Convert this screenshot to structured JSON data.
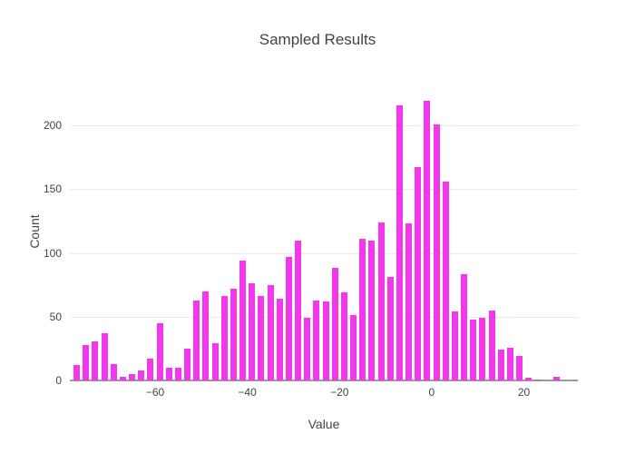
{
  "figure": {
    "title": "Sampled Results",
    "colors": {
      "bar": "#f337ec",
      "text": "#444444",
      "grid": "#ebebeb",
      "axis_line": "#9a9a9a",
      "background": "#ffffff"
    }
  },
  "chart_data": {
    "type": "bar",
    "subtype": "histogram",
    "title": "Sampled Results",
    "xlabel": "Value",
    "ylabel": "Count",
    "bin_width": 2,
    "bar_color": "#f337ec",
    "categories": [
      -77,
      -75,
      -73,
      -71,
      -69,
      -67,
      -65,
      -63,
      -61,
      -59,
      -57,
      -55,
      -53,
      -51,
      -49,
      -47,
      -45,
      -43,
      -41,
      -39,
      -37,
      -35,
      -33,
      -31,
      -29,
      -27,
      -25,
      -23,
      -21,
      -19,
      -17,
      -15,
      -13,
      -11,
      -9,
      -7,
      -5,
      -3,
      -1,
      1,
      3,
      5,
      7,
      9,
      11,
      13,
      15,
      17,
      19,
      21,
      23,
      25,
      27
    ],
    "values": [
      12,
      28,
      31,
      37,
      13,
      3,
      5,
      8,
      17,
      45,
      10,
      10,
      25,
      63,
      70,
      29,
      66,
      72,
      94,
      76,
      66,
      75,
      64,
      97,
      110,
      49,
      63,
      62,
      88,
      69,
      51,
      111,
      110,
      124,
      81,
      216,
      123,
      167,
      219,
      201,
      156,
      54,
      83,
      48,
      49,
      55,
      24,
      26,
      19,
      2,
      1,
      0,
      3
    ],
    "xlim": [
      -78.5,
      31.7
    ],
    "ylim": [
      0,
      233.5
    ],
    "x_ticks": [
      {
        "value": -60,
        "label": "−60"
      },
      {
        "value": -40,
        "label": "−40"
      },
      {
        "value": -20,
        "label": "−20"
      },
      {
        "value": 0,
        "label": "0"
      },
      {
        "value": 20,
        "label": "20"
      }
    ],
    "y_ticks": [
      {
        "value": 0,
        "label": "0"
      },
      {
        "value": 50,
        "label": "50"
      },
      {
        "value": 100,
        "label": "100"
      },
      {
        "value": 150,
        "label": "150"
      },
      {
        "value": 200,
        "label": "200"
      }
    ],
    "grid": "horizontal",
    "legend": "none"
  }
}
